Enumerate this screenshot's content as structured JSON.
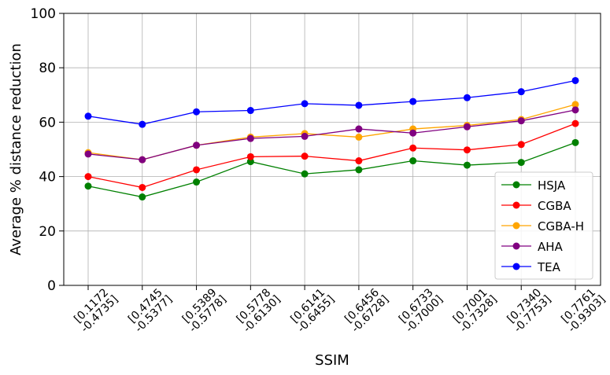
{
  "chart_data": {
    "type": "line",
    "xlabel": "SSIM",
    "ylabel": "Average % distance reduction",
    "ylim": [
      0,
      100
    ],
    "yticks": [
      0,
      20,
      40,
      60,
      80,
      100
    ],
    "grid": true,
    "legend_position": "lower-right",
    "categories": [
      [
        "[0.1172",
        "-0.4735]"
      ],
      [
        "[0.4745",
        "-0.5377]"
      ],
      [
        "[0.5389",
        "-0.5778]"
      ],
      [
        "[0.5778",
        "-0.6130]"
      ],
      [
        "[0.6141",
        "-0.6455]"
      ],
      [
        "[0.6456",
        "-0.6728]"
      ],
      [
        "[0.6733",
        "-0.7000]"
      ],
      [
        "[0.7001",
        "-0.7328]"
      ],
      [
        "[0.7340",
        "-0.7753]"
      ],
      [
        "[0.7761",
        "-0.9303]"
      ]
    ],
    "series": [
      {
        "name": "HSJA",
        "color": "#008000",
        "values": [
          36.5,
          32.5,
          38.0,
          45.5,
          41.0,
          42.5,
          45.8,
          44.2,
          45.2,
          52.5
        ]
      },
      {
        "name": "CGBA",
        "color": "#ff0000",
        "values": [
          40.0,
          36.0,
          42.5,
          47.3,
          47.5,
          45.8,
          50.5,
          49.8,
          51.8,
          59.5
        ]
      },
      {
        "name": "CGBA-H",
        "color": "#ffa500",
        "values": [
          48.8,
          46.2,
          51.5,
          54.5,
          55.8,
          54.5,
          57.5,
          58.8,
          61.0,
          66.5
        ]
      },
      {
        "name": "AHA",
        "color": "#800080",
        "values": [
          48.3,
          46.2,
          51.5,
          54.0,
          54.8,
          57.5,
          56.0,
          58.3,
          60.5,
          64.5
        ]
      },
      {
        "name": "TEA",
        "color": "#0000ff",
        "values": [
          62.2,
          59.2,
          63.8,
          64.3,
          66.8,
          66.2,
          67.6,
          69.0,
          71.2,
          75.3
        ]
      }
    ]
  }
}
